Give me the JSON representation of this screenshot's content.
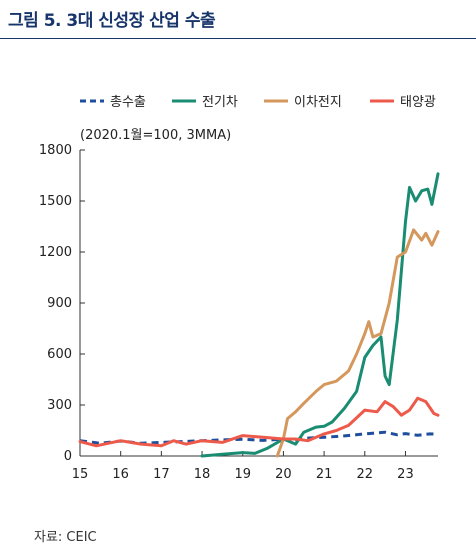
{
  "title": "그림 5. 3대 신성장 산업 수출",
  "source": "자료: CEIC",
  "chart_data": {
    "type": "line",
    "unit_note": "(2020.1월=100, 3MMA)",
    "x_tick_labels": [
      "15",
      "16",
      "17",
      "18",
      "19",
      "20",
      "21",
      "22",
      "23"
    ],
    "x_ticks": [
      2015,
      2016,
      2017,
      2018,
      2019,
      2020,
      2021,
      2022,
      2023
    ],
    "xlim": [
      2015,
      2023.8
    ],
    "ylim": [
      0,
      1800
    ],
    "y_ticks": [
      0,
      300,
      600,
      900,
      1200,
      1500,
      1800
    ],
    "y_tick_labels": [
      "0",
      "300",
      "600",
      "900",
      "1200",
      "1500",
      "1800"
    ],
    "legend_position": "top",
    "series": [
      {
        "name": "총수출",
        "color": "#1f4e9c",
        "dashed": true,
        "points": [
          [
            2015.0,
            90
          ],
          [
            2015.5,
            75
          ],
          [
            2016.0,
            88
          ],
          [
            2016.5,
            75
          ],
          [
            2017.0,
            80
          ],
          [
            2017.5,
            85
          ],
          [
            2018.0,
            90
          ],
          [
            2018.5,
            95
          ],
          [
            2019.0,
            98
          ],
          [
            2019.5,
            92
          ],
          [
            2020.0,
            100
          ],
          [
            2020.3,
            95
          ],
          [
            2020.6,
            105
          ],
          [
            2021.0,
            110
          ],
          [
            2021.5,
            118
          ],
          [
            2022.0,
            130
          ],
          [
            2022.5,
            140
          ],
          [
            2022.8,
            125
          ],
          [
            2023.0,
            132
          ],
          [
            2023.3,
            122
          ],
          [
            2023.6,
            130
          ],
          [
            2023.8,
            128
          ]
        ]
      },
      {
        "name": "전기차",
        "color": "#1a8c72",
        "dashed": false,
        "points": [
          [
            2018.0,
            0
          ],
          [
            2018.5,
            10
          ],
          [
            2019.0,
            20
          ],
          [
            2019.3,
            15
          ],
          [
            2019.6,
            45
          ],
          [
            2020.0,
            100
          ],
          [
            2020.3,
            70
          ],
          [
            2020.5,
            140
          ],
          [
            2020.8,
            170
          ],
          [
            2021.0,
            175
          ],
          [
            2021.2,
            200
          ],
          [
            2021.5,
            280
          ],
          [
            2021.8,
            380
          ],
          [
            2022.0,
            580
          ],
          [
            2022.2,
            650
          ],
          [
            2022.4,
            700
          ],
          [
            2022.5,
            470
          ],
          [
            2022.6,
            420
          ],
          [
            2022.8,
            800
          ],
          [
            2023.0,
            1380
          ],
          [
            2023.1,
            1580
          ],
          [
            2023.25,
            1500
          ],
          [
            2023.4,
            1560
          ],
          [
            2023.55,
            1570
          ],
          [
            2023.65,
            1480
          ],
          [
            2023.8,
            1660
          ]
        ]
      },
      {
        "name": "이차전지",
        "color": "#d4975c",
        "dashed": false,
        "points": [
          [
            2019.85,
            0
          ],
          [
            2020.0,
            100
          ],
          [
            2020.1,
            220
          ],
          [
            2020.3,
            260
          ],
          [
            2020.5,
            310
          ],
          [
            2020.8,
            380
          ],
          [
            2021.0,
            420
          ],
          [
            2021.3,
            440
          ],
          [
            2021.6,
            500
          ],
          [
            2021.8,
            600
          ],
          [
            2022.0,
            720
          ],
          [
            2022.1,
            790
          ],
          [
            2022.2,
            700
          ],
          [
            2022.4,
            720
          ],
          [
            2022.6,
            900
          ],
          [
            2022.8,
            1170
          ],
          [
            2023.0,
            1200
          ],
          [
            2023.2,
            1330
          ],
          [
            2023.4,
            1270
          ],
          [
            2023.5,
            1310
          ],
          [
            2023.65,
            1240
          ],
          [
            2023.8,
            1320
          ]
        ]
      },
      {
        "name": "태양광",
        "color": "#ee5a4a",
        "dashed": false,
        "points": [
          [
            2015.0,
            85
          ],
          [
            2015.4,
            60
          ],
          [
            2016.0,
            90
          ],
          [
            2016.5,
            70
          ],
          [
            2017.0,
            60
          ],
          [
            2017.3,
            90
          ],
          [
            2017.6,
            70
          ],
          [
            2018.0,
            90
          ],
          [
            2018.5,
            80
          ],
          [
            2019.0,
            120
          ],
          [
            2019.5,
            110
          ],
          [
            2020.0,
            100
          ],
          [
            2020.3,
            100
          ],
          [
            2020.6,
            90
          ],
          [
            2021.0,
            130
          ],
          [
            2021.3,
            150
          ],
          [
            2021.6,
            180
          ],
          [
            2022.0,
            270
          ],
          [
            2022.3,
            260
          ],
          [
            2022.5,
            320
          ],
          [
            2022.7,
            290
          ],
          [
            2022.9,
            240
          ],
          [
            2023.1,
            270
          ],
          [
            2023.3,
            340
          ],
          [
            2023.5,
            320
          ],
          [
            2023.7,
            250
          ],
          [
            2023.8,
            240
          ]
        ]
      }
    ]
  }
}
